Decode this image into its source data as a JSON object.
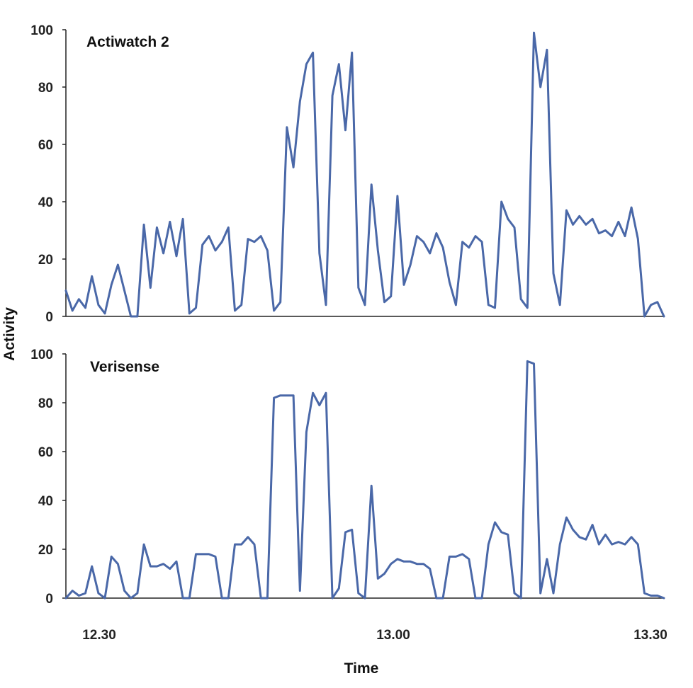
{
  "chart_data": [
    {
      "type": "line",
      "title": "Actiwatch 2",
      "ylabel": "Activity",
      "ylim": [
        0,
        100
      ],
      "y_ticks": [
        "0",
        "20",
        "40",
        "60",
        "80",
        "100"
      ],
      "x_ticks": [
        "12.30",
        "13.00",
        "13.30"
      ],
      "color": "#4a68a8",
      "series": [
        {
          "x": [
            0,
            1,
            2,
            3,
            4,
            5,
            6,
            7,
            8,
            9,
            10,
            11,
            12,
            13,
            14,
            15,
            16,
            17,
            18,
            19,
            20,
            21,
            22,
            23,
            24,
            25,
            26,
            27,
            28,
            29,
            30,
            31,
            32,
            33,
            34,
            35,
            36,
            37,
            38,
            39,
            40,
            41,
            42,
            43,
            44,
            45,
            46,
            47,
            48,
            49,
            50,
            51,
            52,
            53,
            54,
            55,
            56,
            57,
            58,
            59,
            60,
            61,
            62,
            63,
            64,
            65,
            66,
            67,
            68,
            69,
            70,
            71,
            72,
            73,
            74,
            75,
            76,
            77,
            78,
            79,
            80,
            81,
            82,
            83,
            84,
            85,
            86,
            87,
            88,
            89,
            90,
            91,
            92
          ],
          "values": [
            9,
            2,
            6,
            3,
            14,
            4,
            1,
            11,
            18,
            9,
            0,
            0,
            32,
            10,
            31,
            22,
            33,
            21,
            34,
            1,
            3,
            25,
            28,
            23,
            26,
            31,
            2,
            4,
            27,
            26,
            28,
            23,
            2,
            5,
            66,
            52,
            75,
            88,
            92,
            22,
            4,
            77,
            88,
            65,
            92,
            10,
            4,
            46,
            23,
            5,
            7,
            42,
            11,
            18,
            28,
            26,
            22,
            29,
            24,
            12,
            4,
            26,
            24,
            28,
            26,
            4,
            3,
            40,
            34,
            31,
            6,
            3,
            99,
            80,
            93,
            15,
            4,
            37,
            32,
            35,
            32,
            34,
            29,
            30,
            28,
            33,
            28,
            38,
            27,
            0,
            4,
            5,
            0
          ]
        }
      ]
    },
    {
      "type": "line",
      "title": "Verisense",
      "ylabel": "Activity",
      "ylim": [
        0,
        100
      ],
      "y_ticks": [
        "0",
        "20",
        "40",
        "60",
        "80",
        "100"
      ],
      "x_ticks": [
        "12.30",
        "13.00",
        "13.30"
      ],
      "xlabel": "Time",
      "color": "#4a68a8",
      "series": [
        {
          "x": [
            0,
            1,
            2,
            3,
            4,
            5,
            6,
            7,
            8,
            9,
            10,
            11,
            12,
            13,
            14,
            15,
            16,
            17,
            18,
            19,
            20,
            21,
            22,
            23,
            24,
            25,
            26,
            27,
            28,
            29,
            30,
            31,
            32,
            33,
            34,
            35,
            36,
            37,
            38,
            39,
            40,
            41,
            42,
            43,
            44,
            45,
            46,
            47,
            48,
            49,
            50,
            51,
            52,
            53,
            54,
            55,
            56,
            57,
            58,
            59,
            60,
            61,
            62,
            63,
            64,
            65,
            66,
            67,
            68,
            69,
            70,
            71,
            72,
            73,
            74,
            75,
            76,
            77,
            78,
            79,
            80,
            81,
            82,
            83,
            84,
            85,
            86,
            87,
            88,
            89,
            90,
            91,
            92
          ],
          "values": [
            0,
            3,
            1,
            2,
            13,
            2,
            0,
            17,
            14,
            3,
            0,
            2,
            22,
            13,
            13,
            14,
            12,
            15,
            0,
            0,
            18,
            18,
            18,
            17,
            0,
            0,
            22,
            22,
            25,
            22,
            0,
            0,
            82,
            83,
            83,
            83,
            3,
            68,
            84,
            79,
            84,
            0,
            4,
            27,
            28,
            2,
            0,
            46,
            8,
            10,
            14,
            16,
            15,
            15,
            14,
            14,
            12,
            0,
            0,
            17,
            17,
            18,
            16,
            0,
            0,
            22,
            31,
            27,
            26,
            2,
            0,
            97,
            96,
            2,
            16,
            2,
            22,
            33,
            28,
            25,
            24,
            30,
            22,
            26,
            22,
            23,
            22,
            25,
            22,
            2,
            1,
            1,
            0
          ]
        }
      ]
    }
  ]
}
